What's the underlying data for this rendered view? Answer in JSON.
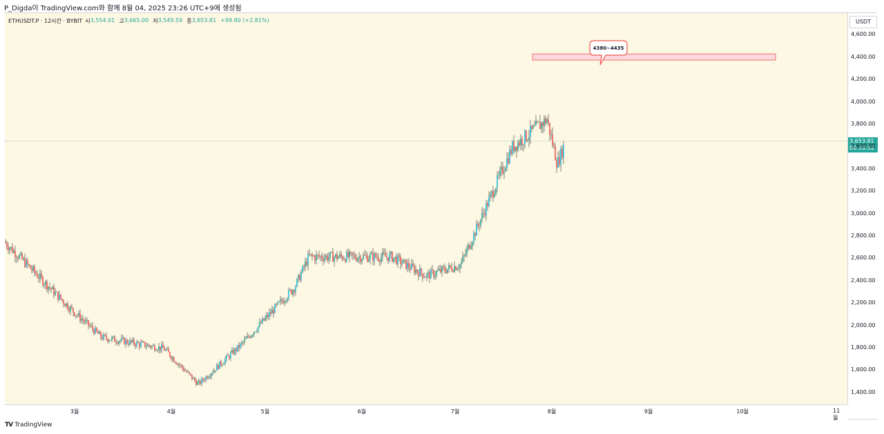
{
  "caption": "P_Digda이 TradingView.com와 함께 8월 04, 2025 23:26 UTC+9에 생성됨",
  "legend": {
    "symbol": "ETHUSDT.P · 12시간 · BYBIT",
    "open_label": "시",
    "open": "3,554.01",
    "high_label": "고",
    "high": "3,665.00",
    "low_label": "저",
    "low": "3,549.59",
    "close_label": "종",
    "close": "3,653.81",
    "change": "+99.80 (+2.81%)"
  },
  "currency": "USDT",
  "last_price": {
    "value": "3,653.81",
    "countdown": "09:33:52"
  },
  "brand": {
    "name": "TradingView",
    "logo": "tv-logo"
  },
  "colors": {
    "up": "#26a69a",
    "down": "#ef5350",
    "up_strong": "#22b9d8",
    "background": "#fdf8e3",
    "zone_fill": "#fbd9dc",
    "zone_border": "#ef5350"
  },
  "chart_data": {
    "type": "candlestick",
    "interval": "12시간",
    "y_axis": {
      "min": 1300,
      "max": 4800,
      "ticks": [
        1400,
        1600,
        1800,
        2000,
        2200,
        2400,
        2600,
        2800,
        3000,
        3200,
        3400,
        3600,
        3800,
        4000,
        4200,
        4400,
        4600
      ],
      "tick_labels": [
        "1,400.00",
        "1,600.00",
        "1,800.00",
        "2,000.00",
        "2,200.00",
        "2,400.00",
        "2,600.00",
        "2,800.00",
        "3,000.00",
        "3,200.00",
        "3,400.00",
        "3,600.00",
        "3,800.00",
        "4,000.00",
        "4,200.00",
        "4,400.00",
        "4,600.00"
      ]
    },
    "x_axis": {
      "tick_labels": [
        "3월",
        "4월",
        "5월",
        "6월",
        "7월",
        "8월",
        "9월",
        "10월",
        "11월"
      ]
    },
    "grid": false,
    "annotation": {
      "text": "4380~4435",
      "zone_low": 4380,
      "zone_high": 4435,
      "zone_start": "8월",
      "zone_end": "10월"
    },
    "price_path_keypoints": [
      {
        "t": "3월 초",
        "price": 2750
      },
      {
        "t": "3월",
        "price": 2150
      },
      {
        "t": "3월 중",
        "price": 1900
      },
      {
        "t": "4월",
        "price": 1800
      },
      {
        "t": "4월 중",
        "price": 1480
      },
      {
        "t": "5월 초",
        "price": 1820
      },
      {
        "t": "5월",
        "price": 2350
      },
      {
        "t": "5월 중",
        "price": 2620
      },
      {
        "t": "6월",
        "price": 2620
      },
      {
        "t": "6월 중",
        "price": 2450
      },
      {
        "t": "7월 초",
        "price": 2550
      },
      {
        "t": "7월 중",
        "price": 3600
      },
      {
        "t": "8월 초",
        "price": 3850
      },
      {
        "t": "8월",
        "price": 3450
      },
      {
        "t": "8월 04",
        "price": 3653.81
      }
    ]
  }
}
